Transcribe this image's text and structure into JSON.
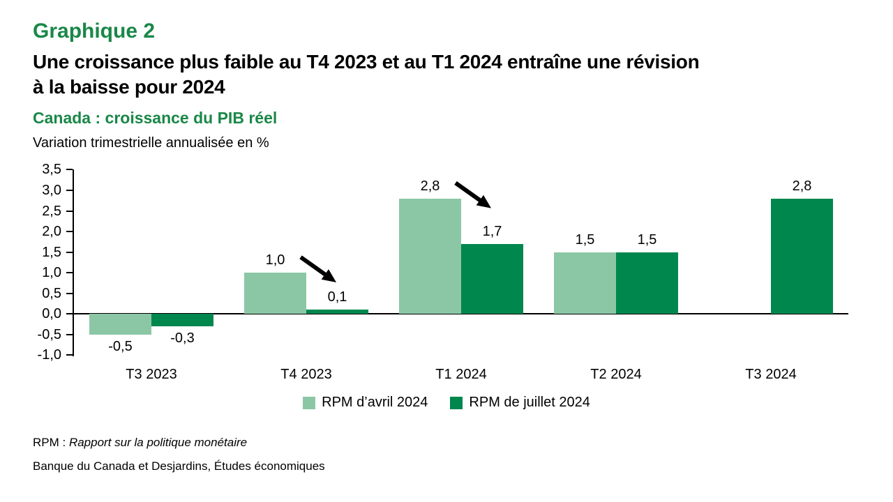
{
  "chart_data": {
    "type": "bar",
    "kicker": "Graphique 2",
    "title": "Une croissance plus faible au T4 2023 et au T1 2024 entraîne une révision à la baisse pour 2024",
    "title_lines": [
      "Une croissance plus faible au T4 2023 et au T1 2024 entraîne une révision",
      "à la baisse pour 2024"
    ],
    "subtitle": "Canada : croissance du PIB réel",
    "ylabel": "Variation trimestrielle annualisée en %",
    "xlabel": "",
    "categories": [
      "T3 2023",
      "T4 2023",
      "T1 2024",
      "T2 2024",
      "T3 2024"
    ],
    "series": [
      {
        "name": "RPM d’avril 2024",
        "color": "#8cc7a5",
        "values": [
          -0.5,
          1.0,
          2.8,
          1.5,
          null
        ],
        "labels": [
          "-0,5",
          "1,0",
          "2,8",
          "1,5",
          null
        ]
      },
      {
        "name": "RPM de juillet 2024",
        "color": "#00874e",
        "values": [
          -0.3,
          0.1,
          1.7,
          1.5,
          2.8
        ],
        "labels": [
          "-0,3",
          "0,1",
          "1,7",
          "1,5",
          "2,8"
        ]
      }
    ],
    "ylim": [
      -1.0,
      3.5
    ],
    "ytick_step": 0.5,
    "ytick_labels": [
      "3,5",
      "3,0",
      "2,5",
      "2,0",
      "1,5",
      "1,0",
      "0,5",
      "0,0",
      "-0,5",
      "-1,0"
    ],
    "annotations": [
      {
        "type": "arrow",
        "category_index": 1,
        "direction": "down-right"
      },
      {
        "type": "arrow",
        "category_index": 2,
        "direction": "down-right"
      }
    ],
    "legend_position": "bottom",
    "grid": false
  },
  "footer": {
    "note_prefix": "RPM : ",
    "note_italic": "Rapport sur la politique monétaire",
    "source": "Banque du Canada et Desjardins, Études économiques"
  },
  "colors": {
    "heading_green": "#1a8748",
    "series_light_green": "#8cc7a5",
    "series_dark_green": "#00874e",
    "arrow_black": "#000000",
    "axis_black": "#000000",
    "background": "#ffffff"
  }
}
